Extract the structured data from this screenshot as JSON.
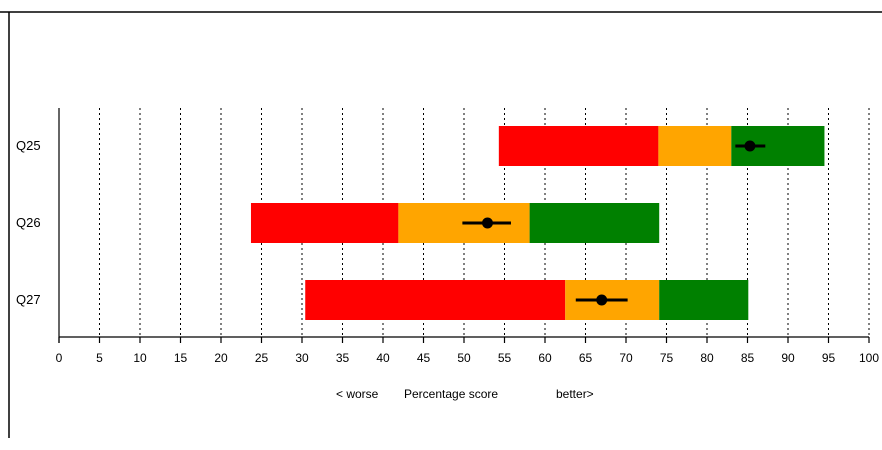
{
  "chart_data": {
    "type": "bar",
    "orientation": "horizontal",
    "title": "",
    "categories": [
      "Q25",
      "Q26",
      "Q27"
    ],
    "xlim": [
      0,
      100
    ],
    "x_ticks": [
      0,
      5,
      10,
      15,
      20,
      25,
      30,
      35,
      40,
      45,
      50,
      55,
      60,
      65,
      70,
      75,
      80,
      85,
      90,
      95,
      100
    ],
    "x_tick_labels": [
      "0",
      "5",
      "10",
      "15",
      "20",
      "25",
      "30",
      "35",
      "40",
      "45",
      "50",
      "55",
      "60",
      "65",
      "70",
      "75",
      "80",
      "85",
      "90",
      "95",
      "100"
    ],
    "xlabel": {
      "left": "< worse",
      "center": "Percentage score",
      "right": "better>"
    },
    "grid": "vertical dashed lines at each tick",
    "band_colors": {
      "low": "#ff0000",
      "mid": "#ffa500",
      "high": "#008000"
    },
    "marker_color": "#000000",
    "rows": [
      {
        "label": "Q25",
        "min": 54.3,
        "low_mid": 74,
        "mid_high": 83,
        "max": 94.5,
        "score": 85.3,
        "ci": [
          83.5,
          87.2
        ]
      },
      {
        "label": "Q26",
        "min": 23.7,
        "low_mid": 41.9,
        "mid_high": 58.1,
        "max": 74.1,
        "score": 52.9,
        "ci": [
          49.8,
          55.8
        ]
      },
      {
        "label": "Q27",
        "min": 30.4,
        "low_mid": 62.5,
        "mid_high": 74.1,
        "max": 85.1,
        "score": 67.0,
        "ci": [
          63.8,
          70.2
        ]
      }
    ]
  }
}
